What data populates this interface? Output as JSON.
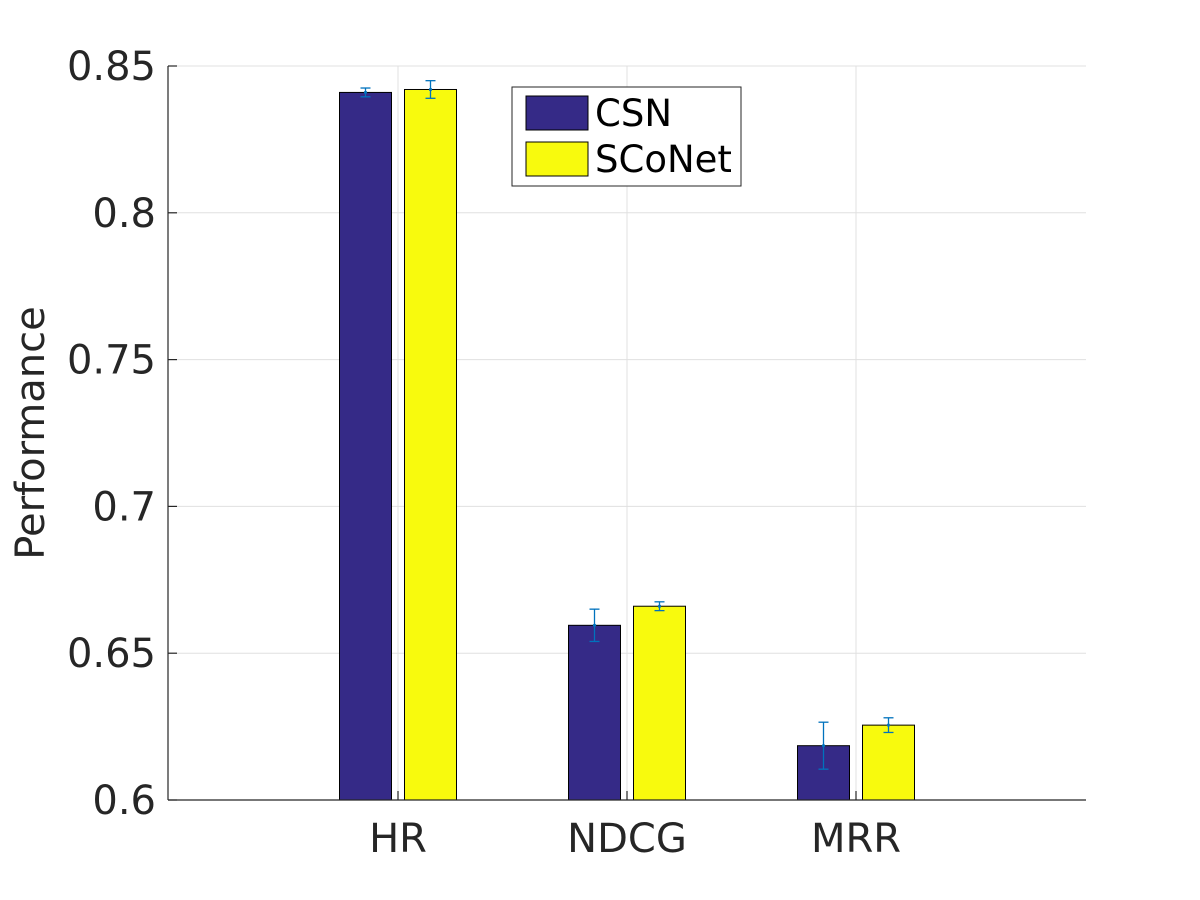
{
  "chart_data": {
    "type": "bar",
    "title": "",
    "xlabel": "",
    "ylabel": "Performance",
    "ylim": [
      0.6,
      0.85
    ],
    "yticks": [
      0.6,
      0.65,
      0.7,
      0.75,
      0.8,
      0.85
    ],
    "ytick_labels": [
      "0.6",
      "0.65",
      "0.7",
      "0.75",
      "0.8",
      "0.85"
    ],
    "categories": [
      "HR",
      "NDCG",
      "MRR"
    ],
    "series": [
      {
        "name": "CSN",
        "color": "#352A87",
        "values": [
          0.841,
          0.6595,
          0.6185
        ],
        "error": [
          0.0015,
          0.0055,
          0.008
        ]
      },
      {
        "name": "SCoNet",
        "color": "#F8FA0D",
        "values": [
          0.842,
          0.666,
          0.6255
        ],
        "error": [
          0.003,
          0.0015,
          0.0025
        ]
      }
    ],
    "error_bar_color": "#0072BD",
    "grid": true,
    "legend": {
      "position": "top-center"
    }
  }
}
